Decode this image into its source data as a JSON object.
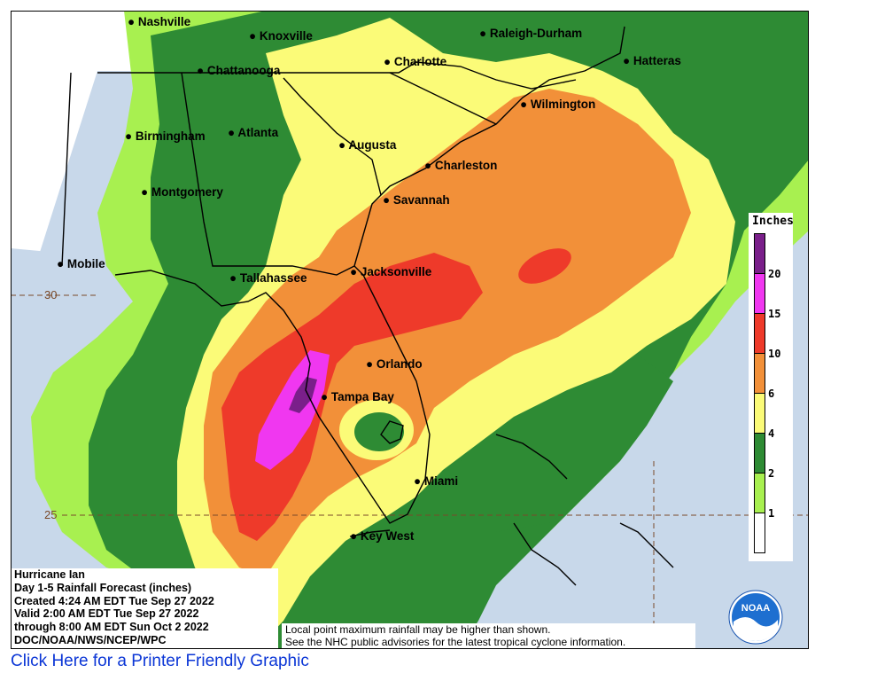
{
  "colors": {
    "ocean": "#c8d8ea",
    "land_none": "#ffffff",
    "band_1": "#a8f050",
    "band_2": "#2e8b34",
    "band_4": "#fbfb78",
    "band_6": "#f29039",
    "band_10": "#ee3a2a",
    "band_15": "#f037f0",
    "band_20": "#7a1f8a",
    "link": "#0b36d6"
  },
  "cities": [
    {
      "name": "Nashville"
    },
    {
      "name": "Knoxville"
    },
    {
      "name": "Raleigh-Durham"
    },
    {
      "name": "Chattanooga"
    },
    {
      "name": "Charlotte"
    },
    {
      "name": "Hatteras"
    },
    {
      "name": "Wilmington"
    },
    {
      "name": "Birmingham"
    },
    {
      "name": "Atlanta"
    },
    {
      "name": "Augusta"
    },
    {
      "name": "Charleston"
    },
    {
      "name": "Montgomery"
    },
    {
      "name": "Savannah"
    },
    {
      "name": "Mobile"
    },
    {
      "name": "Tallahassee"
    },
    {
      "name": "Jacksonville"
    },
    {
      "name": "Orlando"
    },
    {
      "name": "Tampa Bay"
    },
    {
      "name": "Miami"
    },
    {
      "name": "Key West"
    }
  ],
  "latitude_labels": [
    "30",
    "25"
  ],
  "legend": {
    "title": "Inches",
    "bands": [
      {
        "label": "20",
        "color": "#7a1f8a"
      },
      {
        "label": "15",
        "color": "#f037f0"
      },
      {
        "label": "10",
        "color": "#ee3a2a"
      },
      {
        "label": "6",
        "color": "#f29039"
      },
      {
        "label": "4",
        "color": "#fbfb78"
      },
      {
        "label": "2",
        "color": "#2e8b34"
      },
      {
        "label": "1",
        "color": "#a8f050"
      },
      {
        "label": "",
        "color": "#ffffff"
      }
    ]
  },
  "info": {
    "line1": "Hurricane Ian",
    "line2": "Day 1-5 Rainfall Forecast (inches)",
    "line3": "Created 4:24 AM EDT Tue Sep 27 2022",
    "line4": "Valid 2:00 AM EDT Tue Sep 27 2022",
    "line5": "through 8:00 AM EDT Sun Oct 2 2022",
    "line6": "DOC/NOAA/NWS/NCEP/WPC"
  },
  "disclaimer": {
    "line1": "Local point maximum rainfall may be higher than shown.",
    "line2": "See the NHC public advisories for the latest tropical cyclone information."
  },
  "logo": {
    "text": "NOAA"
  },
  "printer_link": "Click Here for a Printer Friendly Graphic"
}
